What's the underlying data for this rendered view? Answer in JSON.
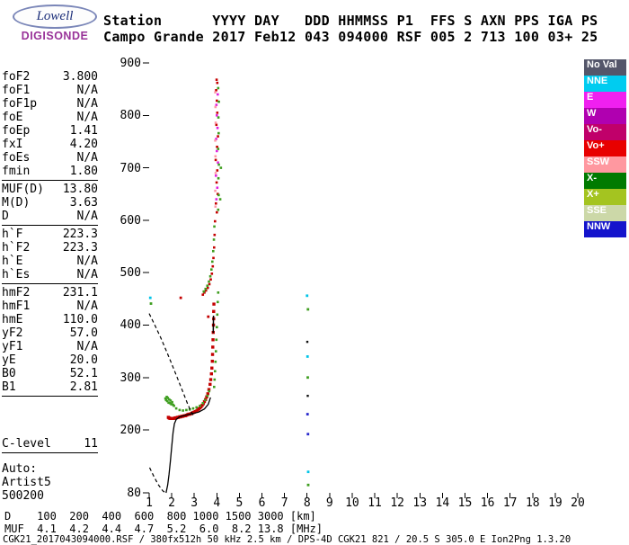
{
  "logo": {
    "line1": "Lowell",
    "line2": "DIGISONDE"
  },
  "header": {
    "line1": "Station      YYYY DAY   DDD HHMMSS P1  FFS S AXN PPS IGA PS",
    "line2": "Campo Grande 2017 Feb12 043 094000 RSF 005 2 713 100 03+ 25"
  },
  "params": {
    "groups": [
      {
        "rows": [
          {
            "label": "foF2",
            "value": "3.800"
          },
          {
            "label": "foF1",
            "value": "N/A"
          },
          {
            "label": "foF1p",
            "value": "N/A"
          },
          {
            "label": "foE",
            "value": "N/A"
          },
          {
            "label": "foEp",
            "value": "1.41"
          },
          {
            "label": "fxI",
            "value": "4.20"
          },
          {
            "label": "foEs",
            "value": "N/A"
          },
          {
            "label": "fmin",
            "value": "1.80"
          }
        ]
      },
      {
        "rows": [
          {
            "label": "MUF(D)",
            "value": "13.80"
          },
          {
            "label": "M(D)",
            "value": "3.63"
          },
          {
            "label": "D",
            "value": "N/A"
          }
        ]
      },
      {
        "rows": [
          {
            "label": "h`F",
            "value": "223.3"
          },
          {
            "label": "h`F2",
            "value": "223.3"
          },
          {
            "label": "h`E",
            "value": "N/A"
          },
          {
            "label": "h`Es",
            "value": "N/A"
          }
        ]
      },
      {
        "rows": [
          {
            "label": "hmF2",
            "value": "231.1"
          },
          {
            "label": "hmF1",
            "value": "N/A"
          },
          {
            "label": "hmE",
            "value": "110.0"
          },
          {
            "label": "yF2",
            "value": "57.0"
          },
          {
            "label": "yF1",
            "value": "N/A"
          },
          {
            "label": "yE",
            "value": "20.0"
          },
          {
            "label": "B0",
            "value": "52.1"
          },
          {
            "label": "B1",
            "value": "2.81"
          }
        ]
      }
    ],
    "clevel": {
      "label": "C-level",
      "value": "11"
    },
    "auto_lines": [
      "Auto:",
      "Artist5",
      "500200"
    ]
  },
  "legend": {
    "items": [
      {
        "label": "No Val",
        "bg": "#54566a",
        "fg": "#ffffff"
      },
      {
        "label": "NNE",
        "bg": "#00ccf0",
        "fg": "#ffffff"
      },
      {
        "label": "E",
        "bg": "#f020f0",
        "fg": "#ffffff"
      },
      {
        "label": "W",
        "bg": "#b000b0",
        "fg": "#ffffff"
      },
      {
        "label": "Vo-",
        "bg": "#c0006a",
        "fg": "#ffffff"
      },
      {
        "label": "Vo+",
        "bg": "#e80000",
        "fg": "#ffffff"
      },
      {
        "label": "SSW",
        "bg": "#ff98a0",
        "fg": "#ffffff"
      },
      {
        "label": "X-",
        "bg": "#007a00",
        "fg": "#ffffff"
      },
      {
        "label": "X+",
        "bg": "#a4c420",
        "fg": "#ffffff"
      },
      {
        "label": "SSE",
        "bg": "#ccd8a8",
        "fg": "#ffffff"
      },
      {
        "label": "NNW",
        "bg": "#1414cc",
        "fg": "#ffffff"
      }
    ]
  },
  "bottom_table": {
    "line1": "D    100  200  400  600  800 1000 1500 3000 [km]",
    "line2": "MUF  4.1  4.2  4.4  4.7  5.2  6.0  8.2 13.8 [MHz]"
  },
  "footer": "CGK21_2017043094000.RSF / 380fx512h 50 kHz 2.5 km / DPS-4D CGK21 821 / 20.5 S 305.0 E Ion2Png 1.3.20",
  "chart_data": {
    "type": "scatter",
    "x_unit": "MHz",
    "y_unit": "km",
    "xlim": [
      1,
      20
    ],
    "ylim": [
      80,
      900
    ],
    "x_ticks": [
      1,
      2,
      3,
      4,
      5,
      6,
      7,
      8,
      9,
      10,
      11,
      12,
      13,
      14,
      15,
      16,
      17,
      18,
      19,
      20
    ],
    "y_ticks": [
      900,
      800,
      700,
      600,
      500,
      400,
      300,
      200,
      80
    ],
    "series": [
      {
        "name": "o-trace-red",
        "color": "#c40000",
        "size": 3.4,
        "points": [
          [
            1.85,
            224
          ],
          [
            1.88,
            223
          ],
          [
            1.92,
            222
          ],
          [
            1.96,
            222
          ],
          [
            2.0,
            222
          ],
          [
            2.05,
            222
          ],
          [
            2.1,
            222
          ],
          [
            2.15,
            223
          ],
          [
            2.2,
            223
          ],
          [
            2.25,
            224
          ],
          [
            2.3,
            224
          ],
          [
            2.35,
            225
          ],
          [
            2.4,
            225
          ],
          [
            2.45,
            226
          ],
          [
            2.5,
            226
          ],
          [
            2.55,
            227
          ],
          [
            2.6,
            227
          ],
          [
            2.65,
            228
          ],
          [
            2.7,
            229
          ],
          [
            2.75,
            230
          ],
          [
            2.8,
            230
          ],
          [
            2.85,
            231
          ],
          [
            2.9,
            232
          ],
          [
            2.95,
            233
          ],
          [
            3.0,
            234
          ],
          [
            3.05,
            235
          ],
          [
            3.1,
            236
          ],
          [
            3.15,
            238
          ],
          [
            3.2,
            240
          ],
          [
            3.25,
            242
          ],
          [
            3.3,
            244
          ],
          [
            3.35,
            247
          ],
          [
            3.4,
            250
          ],
          [
            3.45,
            254
          ],
          [
            3.5,
            258
          ],
          [
            3.55,
            263
          ],
          [
            3.6,
            269
          ],
          [
            3.65,
            277
          ],
          [
            3.7,
            287
          ],
          [
            3.73,
            296
          ],
          [
            3.76,
            307
          ],
          [
            3.78,
            318
          ],
          [
            3.8,
            331
          ],
          [
            3.81,
            344
          ],
          [
            3.82,
            358
          ],
          [
            3.83,
            372
          ],
          [
            3.84,
            386
          ],
          [
            3.85,
            400
          ],
          [
            3.86,
            412
          ],
          [
            3.86,
            426
          ],
          [
            3.87,
            440
          ]
        ]
      },
      {
        "name": "x-trace-green",
        "color": "#3f9e20",
        "size": 2.6,
        "points": [
          [
            1.72,
            260
          ],
          [
            1.75,
            257
          ],
          [
            1.78,
            263
          ],
          [
            1.8,
            255
          ],
          [
            1.83,
            261
          ],
          [
            1.86,
            252
          ],
          [
            1.89,
            258
          ],
          [
            1.92,
            251
          ],
          [
            1.95,
            256
          ],
          [
            1.98,
            249
          ],
          [
            2.02,
            253
          ],
          [
            2.06,
            248
          ],
          [
            2.1,
            246
          ],
          [
            2.2,
            241
          ],
          [
            2.35,
            238
          ],
          [
            2.5,
            237
          ],
          [
            2.65,
            238
          ],
          [
            2.8,
            239
          ],
          [
            2.95,
            241
          ],
          [
            3.1,
            243
          ],
          [
            3.25,
            246
          ],
          [
            3.38,
            251
          ],
          [
            3.48,
            257
          ],
          [
            3.58,
            265
          ],
          [
            3.66,
            274
          ],
          [
            3.88,
            282
          ],
          [
            3.9,
            296
          ],
          [
            3.92,
            312
          ],
          [
            3.94,
            330
          ],
          [
            3.96,
            350
          ],
          [
            3.98,
            372
          ],
          [
            4.0,
            396
          ],
          [
            4.02,
            420
          ],
          [
            4.04,
            444
          ],
          [
            4.06,
            462
          ],
          [
            4.15,
            640
          ],
          [
            4.18,
            700
          ]
        ]
      },
      {
        "name": "second-hop-red",
        "color": "#c40000",
        "size": 2.6,
        "points": [
          [
            3.38,
            458
          ],
          [
            3.45,
            462
          ],
          [
            3.52,
            466
          ],
          [
            3.6,
            471
          ],
          [
            3.67,
            478
          ],
          [
            3.73,
            487
          ],
          [
            3.78,
            498
          ],
          [
            3.82,
            512
          ],
          [
            3.85,
            528
          ],
          [
            3.88,
            548
          ],
          [
            3.9,
            572
          ],
          [
            3.92,
            598
          ]
        ]
      },
      {
        "name": "second-hop-green",
        "color": "#3f9e20",
        "size": 2.6,
        "points": [
          [
            3.42,
            464
          ],
          [
            3.5,
            469
          ],
          [
            3.58,
            475
          ],
          [
            3.65,
            483
          ],
          [
            3.71,
            493
          ],
          [
            3.76,
            506
          ],
          [
            3.8,
            521
          ],
          [
            3.84,
            541
          ],
          [
            3.87,
            563
          ],
          [
            3.89,
            588
          ]
        ]
      },
      {
        "name": "spread-streak-red",
        "color": "#c40000",
        "size": 2.6,
        "points": [
          [
            4.0,
            615
          ],
          [
            3.96,
            632
          ],
          [
            4.04,
            650
          ],
          [
            3.99,
            672
          ],
          [
            4.02,
            695
          ],
          [
            3.95,
            715
          ],
          [
            4.01,
            740
          ],
          [
            4.05,
            760
          ],
          [
            3.98,
            782
          ],
          [
            4.02,
            805
          ],
          [
            4.0,
            828
          ],
          [
            3.97,
            848
          ],
          [
            4.02,
            862
          ],
          [
            3.99,
            868
          ]
        ]
      },
      {
        "name": "spread-streak-magenta",
        "color": "#e020e0",
        "size": 2.6,
        "points": [
          [
            3.98,
            640
          ],
          [
            4.02,
            662
          ],
          [
            3.96,
            685
          ],
          [
            4.05,
            710
          ],
          [
            4.0,
            732
          ],
          [
            3.97,
            755
          ],
          [
            4.03,
            776
          ],
          [
            4.0,
            800
          ],
          [
            3.98,
            820
          ],
          [
            4.04,
            840
          ]
        ]
      },
      {
        "name": "spread-streak-green",
        "color": "#3f9e20",
        "size": 2.6,
        "points": [
          [
            4.06,
            620
          ],
          [
            4.08,
            648
          ],
          [
            4.07,
            680
          ],
          [
            4.09,
            706
          ],
          [
            4.06,
            736
          ],
          [
            4.08,
            766
          ],
          [
            4.07,
            796
          ],
          [
            4.09,
            826
          ],
          [
            4.06,
            852
          ]
        ]
      },
      {
        "name": "spread-streak-pink",
        "color": "#ff98a8",
        "size": 2.6,
        "points": [
          [
            3.94,
            626
          ],
          [
            3.93,
            656
          ],
          [
            3.95,
            690
          ],
          [
            3.94,
            722
          ],
          [
            3.93,
            752
          ],
          [
            3.95,
            786
          ],
          [
            3.94,
            816
          ],
          [
            3.93,
            844
          ]
        ]
      },
      {
        "name": "noise-cyan",
        "color": "#00c4e8",
        "size": 2.8,
        "points": [
          [
            8.02,
            340
          ],
          [
            8.05,
            120
          ],
          [
            1.05,
            452
          ],
          [
            8.0,
            456
          ]
        ]
      },
      {
        "name": "noise-green",
        "color": "#3f9e20",
        "size": 2.8,
        "points": [
          [
            8.04,
            430
          ],
          [
            8.03,
            300
          ],
          [
            1.08,
            441
          ],
          [
            8.05,
            95
          ]
        ]
      },
      {
        "name": "noise-blue",
        "color": "#2828cc",
        "size": 2.8,
        "points": [
          [
            8.02,
            230
          ],
          [
            8.04,
            192
          ]
        ]
      },
      {
        "name": "noise-red",
        "color": "#c40000",
        "size": 2.8,
        "points": [
          [
            3.62,
            416
          ],
          [
            2.4,
            452
          ]
        ]
      },
      {
        "name": "noise-black",
        "color": "#101010",
        "size": 2.4,
        "points": [
          [
            8.03,
            265
          ],
          [
            8.01,
            368
          ]
        ]
      }
    ],
    "lines": [
      {
        "name": "profile-solid",
        "color": "#000000",
        "width": 1.3,
        "dash": "",
        "points": [
          [
            1.75,
            80
          ],
          [
            1.82,
            95
          ],
          [
            1.88,
            115
          ],
          [
            1.94,
            140
          ],
          [
            2.0,
            168
          ],
          [
            2.06,
            195
          ],
          [
            2.12,
            212
          ],
          [
            2.2,
            220
          ],
          [
            2.35,
            225
          ],
          [
            2.6,
            228
          ],
          [
            2.9,
            231
          ],
          [
            3.2,
            234
          ],
          [
            3.45,
            240
          ],
          [
            3.62,
            249
          ],
          [
            3.72,
            262
          ]
        ]
      },
      {
        "name": "fof2-spike",
        "color": "#000000",
        "width": 1.5,
        "dash": "",
        "points": [
          [
            3.84,
            385
          ],
          [
            3.85,
            418
          ]
        ]
      },
      {
        "name": "profile-dashed-diagonal",
        "color": "#000000",
        "width": 1.2,
        "dash": "4,3",
        "points": [
          [
            1.0,
            422
          ],
          [
            1.25,
            400
          ],
          [
            1.5,
            377
          ],
          [
            1.75,
            352
          ],
          [
            2.0,
            326
          ],
          [
            2.25,
            299
          ],
          [
            2.5,
            272
          ],
          [
            2.7,
            250
          ],
          [
            2.85,
            236
          ],
          [
            2.95,
            228
          ]
        ]
      },
      {
        "name": "profile-dashed-bottom",
        "color": "#000000",
        "width": 1.2,
        "dash": "4,3",
        "points": [
          [
            1.02,
            128
          ],
          [
            1.2,
            112
          ],
          [
            1.4,
            96
          ],
          [
            1.6,
            84
          ],
          [
            1.73,
            80
          ]
        ]
      }
    ]
  }
}
